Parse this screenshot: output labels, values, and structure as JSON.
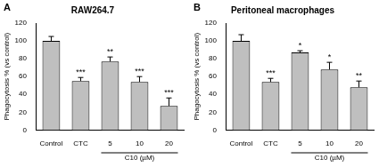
{
  "chart_data": [
    {
      "type": "bar",
      "panel": "A",
      "title": "RAW264.7",
      "y_label": "Phagocytosis % (vs control)",
      "categories": [
        "Control",
        "CTC",
        "5",
        "10",
        "20"
      ],
      "values": [
        100,
        55,
        77,
        54,
        27
      ],
      "errors": [
        5,
        4,
        5,
        6,
        9
      ],
      "annotations": [
        {
          "category": "CTC",
          "text": "***"
        },
        {
          "category": "5",
          "text": "**"
        },
        {
          "category": "10",
          "text": "***"
        },
        {
          "category": "20",
          "text": "***"
        }
      ],
      "group_label": {
        "text": "C10 (µM)",
        "categories": [
          "5",
          "10",
          "20"
        ]
      },
      "color": "#bfbfbf",
      "ylim": [
        0,
        120
      ],
      "yticks": [
        0,
        20,
        40,
        60,
        80,
        100,
        120
      ],
      "grid": false
    },
    {
      "type": "bar",
      "panel": "B",
      "title": "Peritoneal macrophages",
      "y_label": "Phagocytosis % (vs control)",
      "categories": [
        "Control",
        "CTC",
        "5",
        "10",
        "20"
      ],
      "values": [
        100,
        54,
        87,
        68,
        48
      ],
      "errors": [
        7,
        4,
        2,
        8,
        7
      ],
      "annotations": [
        {
          "category": "CTC",
          "text": "***"
        },
        {
          "category": "5",
          "text": "*"
        },
        {
          "category": "10",
          "text": "*"
        },
        {
          "category": "20",
          "text": "**"
        }
      ],
      "group_label": {
        "text": "C10 (µM)",
        "categories": [
          "5",
          "10",
          "20"
        ]
      },
      "color": "#bfbfbf",
      "ylim": [
        0,
        120
      ],
      "yticks": [
        0,
        20,
        40,
        60,
        80,
        100,
        120
      ],
      "grid": false
    }
  ]
}
